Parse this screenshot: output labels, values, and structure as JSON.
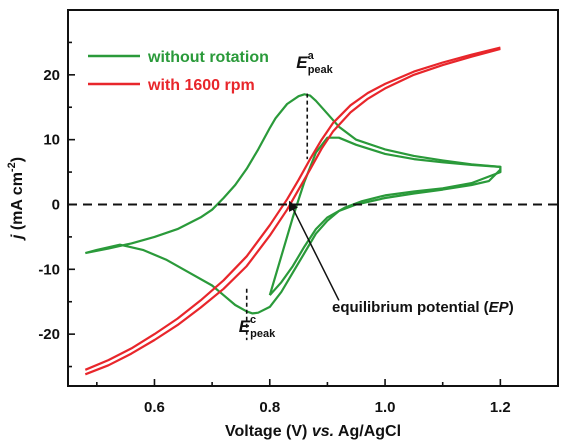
{
  "chart_data": {
    "type": "line",
    "xlabel": {
      "pre": "Voltage (V) ",
      "italic": "vs.",
      "post": " Ag/AgCl"
    },
    "ylabel": {
      "italic": "j",
      "pre": " (mA cm",
      "sup": "-2",
      "post": ")"
    },
    "xlim": [
      0.45,
      1.3
    ],
    "ylim": [
      -28,
      30
    ],
    "xticks": [
      0.6,
      0.8,
      1.0,
      1.2
    ],
    "xtick_labels": [
      "0.6",
      "0.8",
      "1.0",
      "1.2"
    ],
    "yticks": [
      -20,
      -10,
      0,
      10,
      20
    ],
    "ytick_labels": [
      "-20",
      "-10",
      "0",
      "10",
      "20"
    ],
    "reference_line": {
      "y": 0,
      "style": "dashed"
    },
    "legend": {
      "placement": "top-left",
      "entries": [
        {
          "name": "without rotation",
          "color": "#2a9a3a"
        },
        {
          "name": "with 1600 rpm",
          "color": "#e8262b"
        }
      ]
    },
    "series": [
      {
        "name": "without rotation",
        "color": "#2a9a3a",
        "curves": [
          {
            "id": "no-rot-outer",
            "x": [
              0.48,
              0.52,
              0.56,
              0.6,
              0.64,
              0.68,
              0.7,
              0.72,
              0.74,
              0.76,
              0.78,
              0.8,
              0.81,
              0.83,
              0.85,
              0.86,
              0.87,
              0.88,
              0.9,
              0.92,
              0.95,
              1.0,
              1.05,
              1.1,
              1.15,
              1.2,
              1.2,
              1.18,
              1.15,
              1.1,
              1.05,
              1.0,
              0.95,
              0.92,
              0.9,
              0.88,
              0.86,
              0.84,
              0.82,
              0.8,
              0.78,
              0.77,
              0.76,
              0.74,
              0.72,
              0.7,
              0.66,
              0.62,
              0.58,
              0.54,
              0.5,
              0.48
            ],
            "y": [
              -7.5,
              -6.8,
              -6.0,
              -5.0,
              -3.8,
              -2.0,
              -0.8,
              1.0,
              3.0,
              5.5,
              8.5,
              11.8,
              13.3,
              15.5,
              16.7,
              17.0,
              16.8,
              16.0,
              14.0,
              12.0,
              10.0,
              8.5,
              7.5,
              6.8,
              6.2,
              5.8,
              5.4,
              3.6,
              3.0,
              2.3,
              1.7,
              1.0,
              0.0,
              -1.0,
              -2.5,
              -4.5,
              -7.5,
              -10.5,
              -13.5,
              -15.8,
              -16.7,
              -16.8,
              -16.5,
              -15.5,
              -14.0,
              -12.5,
              -10.5,
              -8.5,
              -7.0,
              -6.2,
              -7.0,
              -7.5
            ]
          },
          {
            "id": "no-rot-inner",
            "x": [
              0.8,
              0.82,
              0.84,
              0.86,
              0.88,
              0.9,
              0.92,
              0.95,
              1.0,
              1.05,
              1.1,
              1.15,
              1.2,
              1.2,
              1.15,
              1.1,
              1.05,
              1.0,
              0.96,
              0.93,
              0.9,
              0.88,
              0.86,
              0.84,
              0.82,
              0.8
            ],
            "y": [
              -14.0,
              -8.0,
              -2.0,
              3.5,
              8.0,
              10.3,
              10.3,
              9.2,
              7.8,
              7.0,
              6.5,
              6.1,
              5.8,
              5.0,
              3.3,
              2.5,
              2.0,
              1.4,
              0.5,
              -0.5,
              -2.0,
              -3.8,
              -6.5,
              -9.5,
              -12.0,
              -14.0
            ]
          }
        ]
      },
      {
        "name": "with 1600 rpm",
        "color": "#e8262b",
        "curves": [
          {
            "id": "rpm-forward",
            "x": [
              0.48,
              0.52,
              0.56,
              0.6,
              0.64,
              0.68,
              0.72,
              0.76,
              0.8,
              0.83,
              0.85,
              0.87,
              0.89,
              0.91,
              0.94,
              0.97,
              1.0,
              1.05,
              1.1,
              1.15,
              1.2
            ],
            "y": [
              -25.5,
              -24.0,
              -22.2,
              -20.0,
              -17.6,
              -14.8,
              -11.7,
              -8.0,
              -3.2,
              0.8,
              3.8,
              7.0,
              10.0,
              12.6,
              15.3,
              17.2,
              18.6,
              20.5,
              21.9,
              23.1,
              24.2
            ]
          },
          {
            "id": "rpm-reverse",
            "x": [
              0.48,
              0.52,
              0.56,
              0.6,
              0.64,
              0.68,
              0.72,
              0.76,
              0.8,
              0.83,
              0.85,
              0.87,
              0.89,
              0.91,
              0.94,
              0.97,
              1.0,
              1.05,
              1.1,
              1.15,
              1.2
            ],
            "y": [
              -26.2,
              -24.8,
              -23.0,
              -20.9,
              -18.6,
              -15.9,
              -13.0,
              -9.5,
              -4.8,
              -0.8,
              2.3,
              5.4,
              8.6,
              11.3,
              14.2,
              16.3,
              17.9,
              20.0,
              21.5,
              22.8,
              24.0
            ]
          }
        ]
      }
    ],
    "annotations": {
      "peak_anodic": {
        "label": "E",
        "sup": "a",
        "sub": "peak",
        "x": 0.865,
        "y_top": 16.8,
        "y_bottom": 7.0
      },
      "peak_cathodic": {
        "label": "E",
        "sup": "c",
        "sub": "peak",
        "x": 0.76,
        "y_top": -13.0,
        "y_bottom": -20.0
      },
      "equilibrium": {
        "text_pre": "equilibrium potential (",
        "text_italic": "EP",
        "text_post": ")",
        "arrow_from": {
          "x": 0.92,
          "y": -14.8
        },
        "arrow_to": {
          "x": 0.835,
          "y": 0.3
        }
      }
    }
  }
}
